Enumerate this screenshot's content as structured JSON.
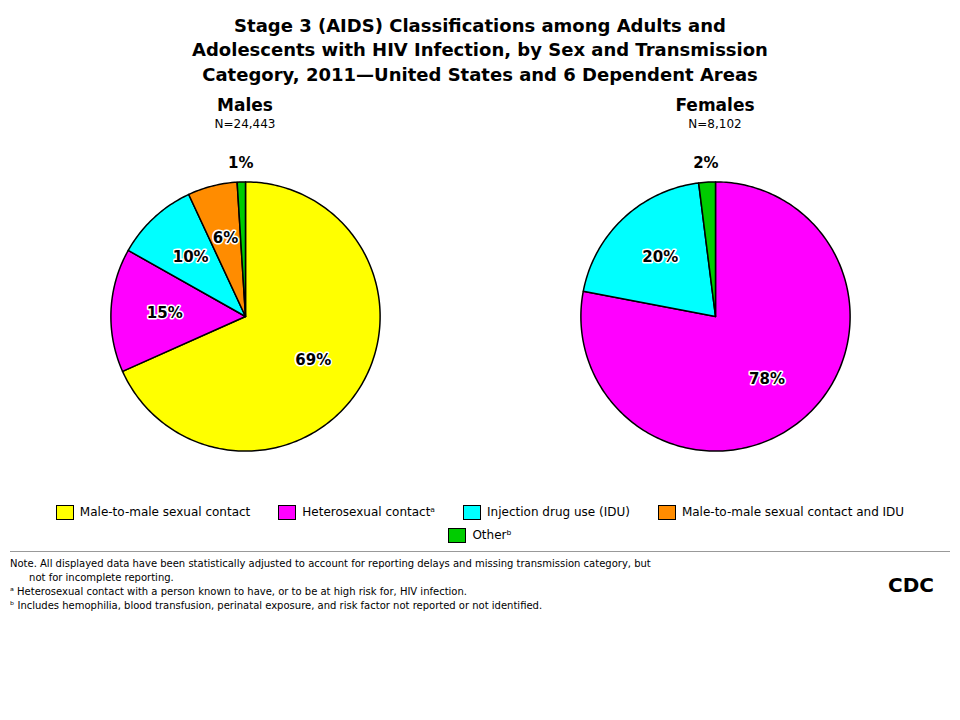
{
  "title": "Stage 3 (AIDS) Classifications among Adults and\nAdolescents with HIV Infection, by Sex and Transmission\nCategory, 2011—United States and 6 Dependent Areas",
  "annotations": [
    "Note. All displayed data have been statistically adjusted to account for reporting delays and missing transmission category, but",
    "      not for incomplete reporting.",
    "ᵃ Heterosexual contact with a person known to have, or to be at high risk for, HIV infection.",
    "ᵇ Includes hemophilia, blood transfusion, perinatal exposure, and risk factor not reported or not identified.",
    "CDC"
  ],
  "chart_data": [
    {
      "type": "pie",
      "title": "Males",
      "subtitle": "N=24,443",
      "categories": [
        "Male-to-male sexual contact",
        "Heterosexual contactᵃ",
        "Injection drug use (IDU)",
        "Male-to-male sexual contact and IDU",
        "Otherᵇ"
      ],
      "values": [
        69,
        15,
        10,
        6,
        1
      ],
      "value_labels": [
        "69%",
        "15%",
        "10%",
        "6%",
        "1%"
      ],
      "colors": [
        "#FFFF00",
        "#FF00FF",
        "#00FFFF",
        "#FF8C00",
        "#00CC00"
      ],
      "data_labels": true,
      "legend": "bottom"
    },
    {
      "type": "pie",
      "title": "Females",
      "subtitle": "N=8,102",
      "categories": [
        "Heterosexual contactᵃ",
        "Injection drug use (IDU)",
        "Otherᵇ"
      ],
      "values": [
        78,
        20,
        2
      ],
      "value_labels": [
        "78%",
        "20%",
        "2%"
      ],
      "colors": [
        "#FF00FF",
        "#00FFFF",
        "#00CC00"
      ],
      "data_labels": true,
      "legend": "bottom"
    }
  ]
}
